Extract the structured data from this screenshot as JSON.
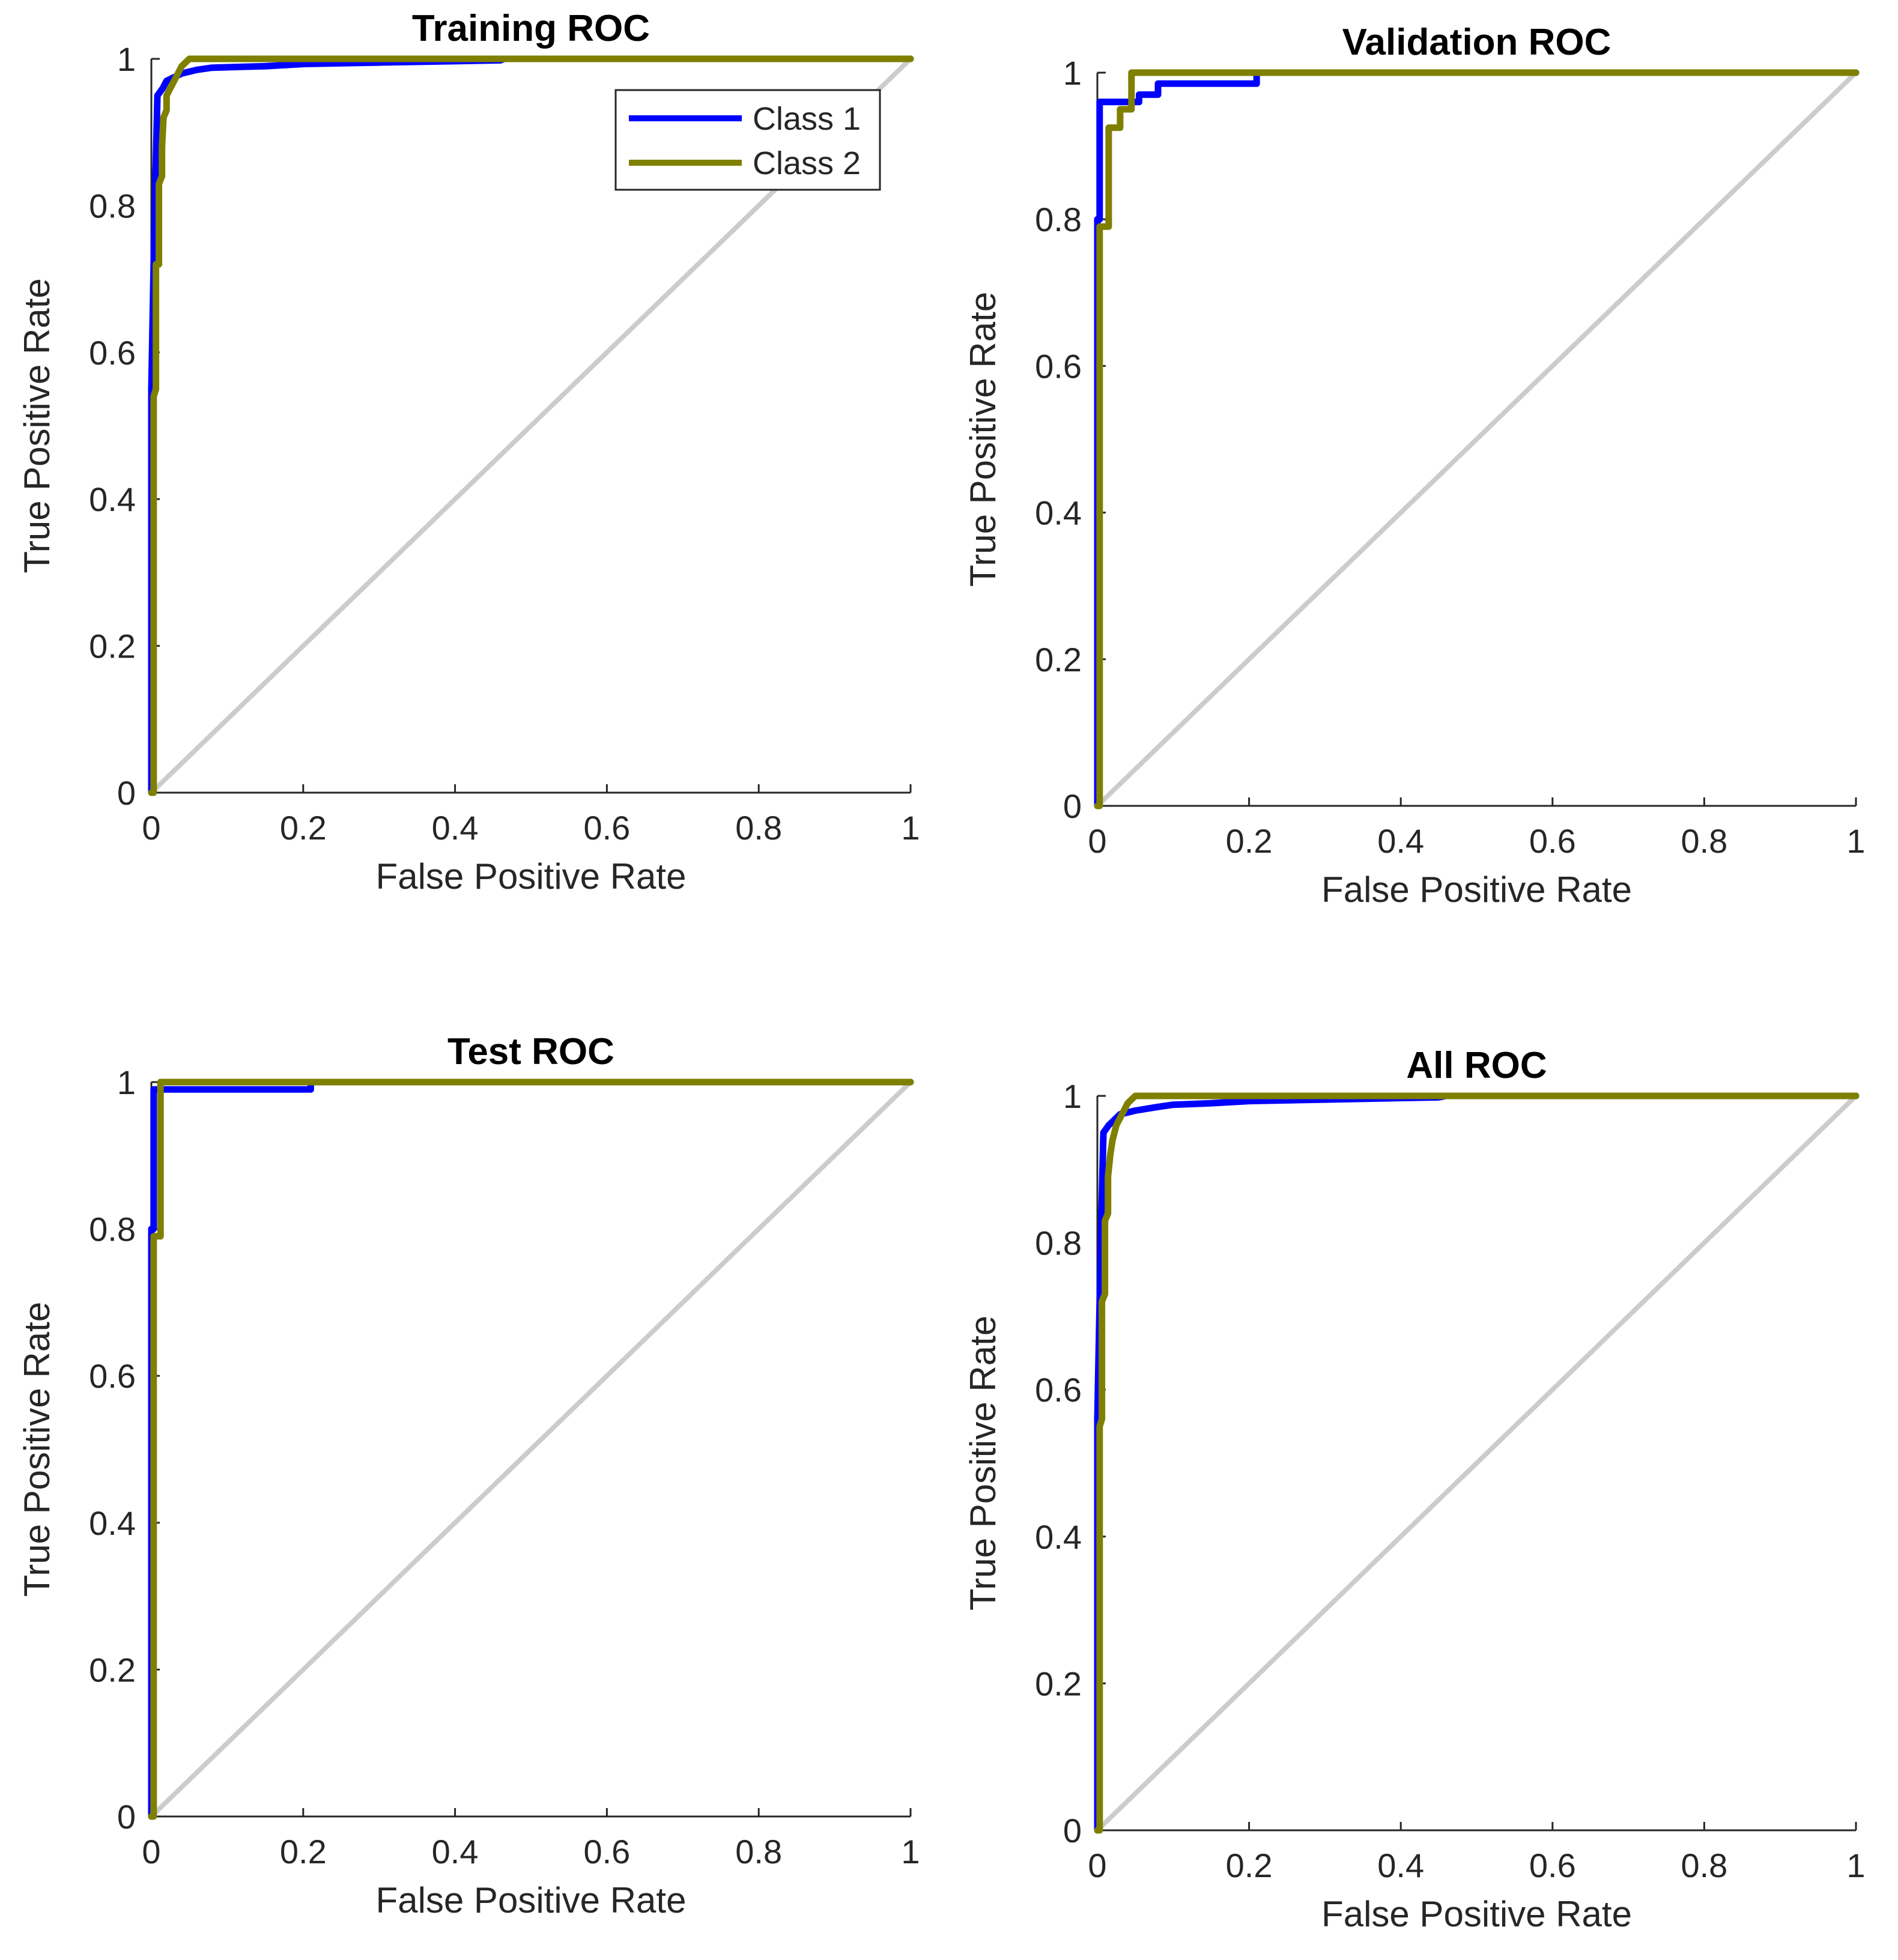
{
  "figure": {
    "legend": {
      "entries": [
        {
          "label": "Class 1",
          "color": "#0000ff"
        },
        {
          "label": "Class 2",
          "color": "#7f7f00"
        }
      ],
      "placement": "top-right of first panel"
    },
    "diagonal_color": "#cccccc"
  },
  "chart_data": [
    {
      "type": "line",
      "title": "Training ROC",
      "xlabel": "False Positive Rate",
      "ylabel": "True Positive Rate",
      "xlim": [
        0,
        1
      ],
      "ylim": [
        0,
        1
      ],
      "xticks": [
        "0",
        "0.2",
        "0.4",
        "0.6",
        "0.8",
        "1"
      ],
      "yticks": [
        "0",
        "0.2",
        "0.4",
        "0.6",
        "0.8",
        "1"
      ],
      "show_legend": true,
      "series": [
        {
          "name": "Class 1",
          "color": "#0000ff",
          "points": [
            [
              0,
              0
            ],
            [
              0,
              0.55
            ],
            [
              0.003,
              0.72
            ],
            [
              0.005,
              0.82
            ],
            [
              0.008,
              0.95
            ],
            [
              0.015,
              0.96
            ],
            [
              0.02,
              0.97
            ],
            [
              0.03,
              0.975
            ],
            [
              0.04,
              0.98
            ],
            [
              0.06,
              0.985
            ],
            [
              0.08,
              0.988
            ],
            [
              0.15,
              0.99
            ],
            [
              0.2,
              0.993
            ],
            [
              0.3,
              0.995
            ],
            [
              0.46,
              0.998
            ],
            [
              0.465,
              1
            ],
            [
              1,
              1
            ]
          ]
        },
        {
          "name": "Class 2",
          "color": "#7f7f00",
          "points": [
            [
              0,
              0
            ],
            [
              0.003,
              0
            ],
            [
              0.003,
              0.54
            ],
            [
              0.006,
              0.55
            ],
            [
              0.006,
              0.72
            ],
            [
              0.01,
              0.72
            ],
            [
              0.01,
              0.83
            ],
            [
              0.014,
              0.84
            ],
            [
              0.014,
              0.88
            ],
            [
              0.016,
              0.92
            ],
            [
              0.02,
              0.93
            ],
            [
              0.02,
              0.95
            ],
            [
              0.025,
              0.96
            ],
            [
              0.03,
              0.97
            ],
            [
              0.035,
              0.98
            ],
            [
              0.04,
              0.99
            ],
            [
              0.045,
              0.995
            ],
            [
              0.05,
              1
            ],
            [
              1,
              1
            ]
          ]
        }
      ]
    },
    {
      "type": "line",
      "title": "Validation ROC",
      "xlabel": "False Positive Rate",
      "ylabel": "True Positive Rate",
      "xlim": [
        0,
        1
      ],
      "ylim": [
        0,
        1
      ],
      "xticks": [
        "0",
        "0.2",
        "0.4",
        "0.6",
        "0.8",
        "1"
      ],
      "yticks": [
        "0",
        "0.2",
        "0.4",
        "0.6",
        "0.8",
        "1"
      ],
      "show_legend": false,
      "series": [
        {
          "name": "Class 1",
          "color": "#0000ff",
          "points": [
            [
              0,
              0
            ],
            [
              0,
              0.8
            ],
            [
              0.003,
              0.8
            ],
            [
              0.003,
              0.96
            ],
            [
              0.055,
              0.96
            ],
            [
              0.055,
              0.97
            ],
            [
              0.08,
              0.97
            ],
            [
              0.08,
              0.985
            ],
            [
              0.21,
              0.985
            ],
            [
              0.21,
              1
            ],
            [
              1,
              1
            ]
          ]
        },
        {
          "name": "Class 2",
          "color": "#7f7f00",
          "points": [
            [
              0,
              0
            ],
            [
              0.003,
              0
            ],
            [
              0.003,
              0.79
            ],
            [
              0.015,
              0.79
            ],
            [
              0.015,
              0.925
            ],
            [
              0.03,
              0.925
            ],
            [
              0.03,
              0.95
            ],
            [
              0.045,
              0.95
            ],
            [
              0.045,
              1
            ],
            [
              1,
              1
            ]
          ]
        }
      ]
    },
    {
      "type": "line",
      "title": "Test ROC",
      "xlabel": "False Positive Rate",
      "ylabel": "True Positive Rate",
      "xlim": [
        0,
        1
      ],
      "ylim": [
        0,
        1
      ],
      "xticks": [
        "0",
        "0.2",
        "0.4",
        "0.6",
        "0.8",
        "1"
      ],
      "yticks": [
        "0",
        "0.2",
        "0.4",
        "0.6",
        "0.8",
        "1"
      ],
      "show_legend": false,
      "series": [
        {
          "name": "Class 1",
          "color": "#0000ff",
          "points": [
            [
              0,
              0
            ],
            [
              0,
              0.8
            ],
            [
              0.003,
              0.8
            ],
            [
              0.003,
              0.99
            ],
            [
              0.21,
              0.99
            ],
            [
              0.21,
              1
            ],
            [
              1,
              1
            ]
          ]
        },
        {
          "name": "Class 2",
          "color": "#7f7f00",
          "points": [
            [
              0,
              0
            ],
            [
              0.003,
              0
            ],
            [
              0.003,
              0.79
            ],
            [
              0.012,
              0.79
            ],
            [
              0.012,
              1
            ],
            [
              1,
              1
            ]
          ]
        }
      ]
    },
    {
      "type": "line",
      "title": "All ROC",
      "xlabel": "False Positive Rate",
      "ylabel": "True Positive Rate",
      "xlim": [
        0,
        1
      ],
      "ylim": [
        0,
        1
      ],
      "xticks": [
        "0",
        "0.2",
        "0.4",
        "0.6",
        "0.8",
        "1"
      ],
      "yticks": [
        "0",
        "0.2",
        "0.4",
        "0.6",
        "0.8",
        "1"
      ],
      "show_legend": false,
      "series": [
        {
          "name": "Class 1",
          "color": "#0000ff",
          "points": [
            [
              0,
              0
            ],
            [
              0,
              0.56
            ],
            [
              0.003,
              0.72
            ],
            [
              0.005,
              0.82
            ],
            [
              0.008,
              0.95
            ],
            [
              0.015,
              0.96
            ],
            [
              0.02,
              0.965
            ],
            [
              0.03,
              0.975
            ],
            [
              0.05,
              0.98
            ],
            [
              0.08,
              0.985
            ],
            [
              0.1,
              0.988
            ],
            [
              0.15,
              0.99
            ],
            [
              0.2,
              0.993
            ],
            [
              0.3,
              0.995
            ],
            [
              0.45,
              0.998
            ],
            [
              0.46,
              1
            ],
            [
              1,
              1
            ]
          ]
        },
        {
          "name": "Class 2",
          "color": "#7f7f00",
          "points": [
            [
              0,
              0
            ],
            [
              0.003,
              0
            ],
            [
              0.003,
              0.55
            ],
            [
              0.006,
              0.56
            ],
            [
              0.006,
              0.72
            ],
            [
              0.01,
              0.73
            ],
            [
              0.01,
              0.83
            ],
            [
              0.014,
              0.84
            ],
            [
              0.014,
              0.89
            ],
            [
              0.017,
              0.92
            ],
            [
              0.02,
              0.94
            ],
            [
              0.025,
              0.96
            ],
            [
              0.03,
              0.97
            ],
            [
              0.035,
              0.98
            ],
            [
              0.04,
              0.99
            ],
            [
              0.045,
              0.995
            ],
            [
              0.05,
              1
            ],
            [
              1,
              1
            ]
          ]
        }
      ]
    }
  ]
}
